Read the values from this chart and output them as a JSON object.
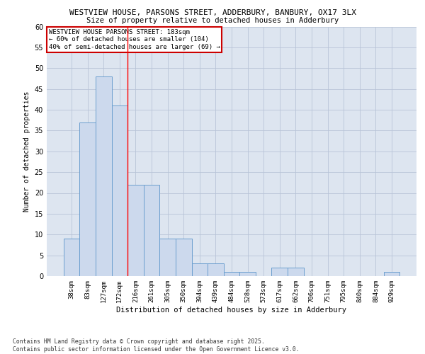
{
  "title_line1": "WESTVIEW HOUSE, PARSONS STREET, ADDERBURY, BANBURY, OX17 3LX",
  "title_line2": "Size of property relative to detached houses in Adderbury",
  "xlabel": "Distribution of detached houses by size in Adderbury",
  "ylabel": "Number of detached properties",
  "categories": [
    "38sqm",
    "83sqm",
    "127sqm",
    "172sqm",
    "216sqm",
    "261sqm",
    "305sqm",
    "350sqm",
    "394sqm",
    "439sqm",
    "484sqm",
    "528sqm",
    "573sqm",
    "617sqm",
    "662sqm",
    "706sqm",
    "751sqm",
    "795sqm",
    "840sqm",
    "884sqm",
    "929sqm"
  ],
  "values": [
    9,
    37,
    48,
    41,
    22,
    22,
    9,
    9,
    3,
    3,
    1,
    1,
    0,
    2,
    2,
    0,
    0,
    0,
    0,
    0,
    1
  ],
  "bar_color": "#ccd9ed",
  "bar_edge_color": "#6b9fcf",
  "background_color": "#ffffff",
  "axes_bg_color": "#dde5f0",
  "grid_color": "#b8c4d8",
  "ylim": [
    0,
    60
  ],
  "yticks": [
    0,
    5,
    10,
    15,
    20,
    25,
    30,
    35,
    40,
    45,
    50,
    55,
    60
  ],
  "red_line_index": 3.5,
  "annotation_text": "WESTVIEW HOUSE PARSONS STREET: 183sqm\n← 60% of detached houses are smaller (104)\n40% of semi-detached houses are larger (69) →",
  "annotation_box_color": "#ffffff",
  "annotation_box_edge": "#cc0000",
  "footnote": "Contains HM Land Registry data © Crown copyright and database right 2025.\nContains public sector information licensed under the Open Government Licence v3.0."
}
